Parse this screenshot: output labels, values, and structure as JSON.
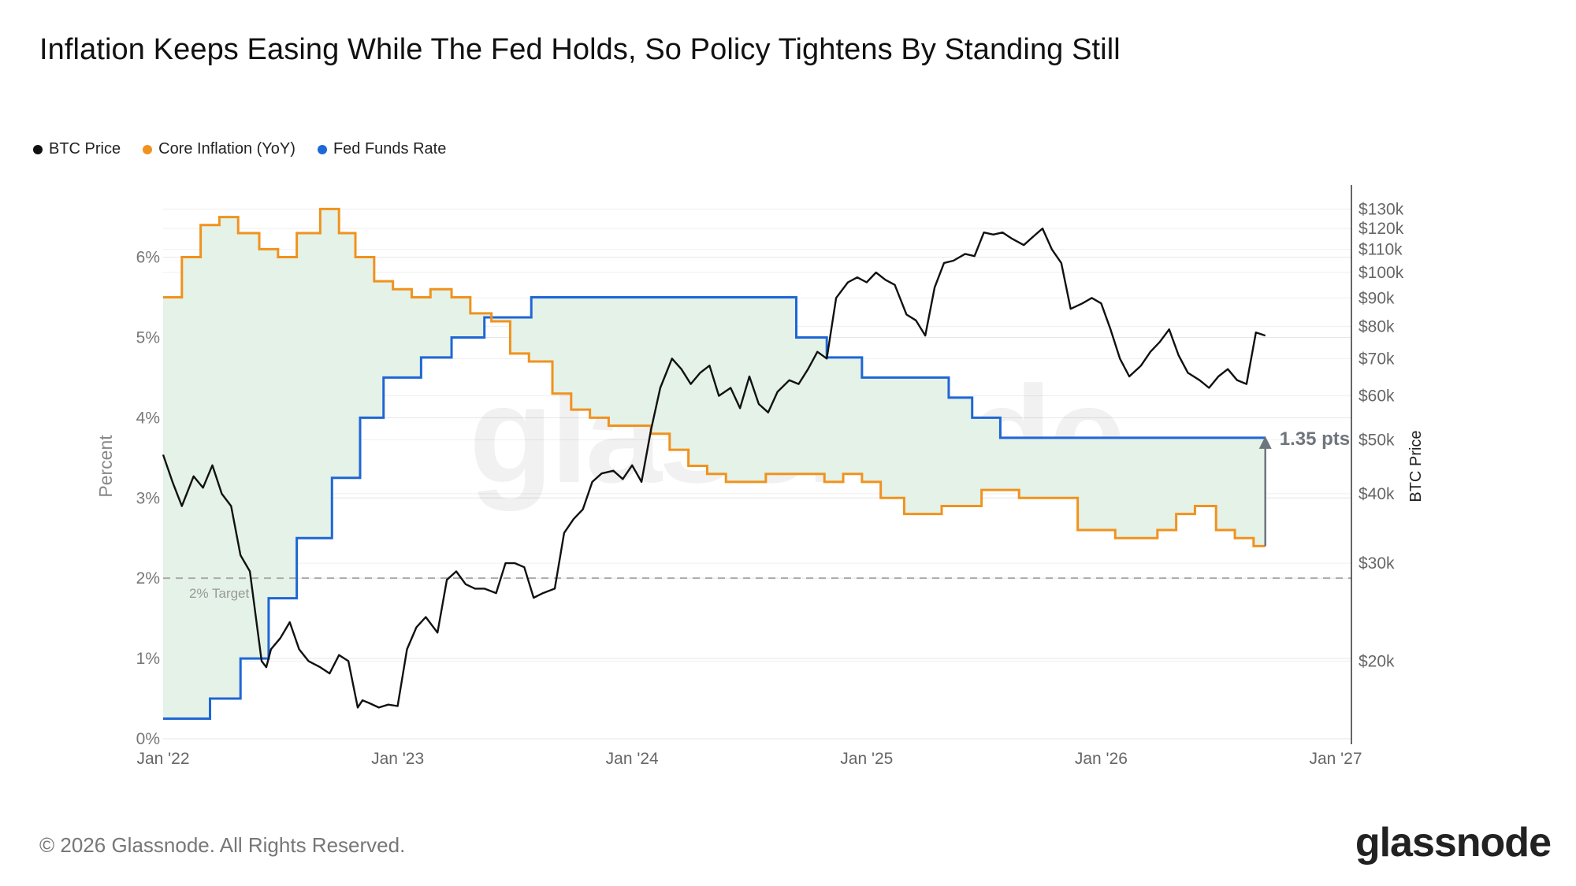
{
  "title": "Inflation Keeps Easing While The Fed Holds, So Policy Tightens By Standing Still",
  "footer": {
    "copyright": "© 2026 Glassnode. All Rights Reserved.",
    "brand": "glassnode",
    "watermark": "glassnode"
  },
  "colors": {
    "btc": "#111111",
    "inflation": "#f0921e",
    "fed": "#1f66d6",
    "fill": "#e3f1e6",
    "grid": "#e6e6e6",
    "target": "#aaaaaa",
    "arrow": "#6f757d"
  },
  "chart_data": {
    "type": "line",
    "legend": [
      {
        "name": "BTC Price",
        "color": "#111111"
      },
      {
        "name": "Core Inflation (YoY)",
        "color": "#f0921e"
      },
      {
        "name": "Fed Funds Rate",
        "color": "#1f66d6"
      }
    ],
    "legend_position": "top-left",
    "x_ticks": [
      "Jan '22",
      "Jan '23",
      "Jan '24",
      "Jan '25",
      "Jan '26",
      "Jan '27"
    ],
    "x_range": [
      2022.0,
      2027.0
    ],
    "ylabel_left": "Percent",
    "ylabel_right": "BTC Price",
    "y_left_ticks": [
      "0%",
      "1%",
      "2%",
      "3%",
      "4%",
      "5%",
      "6%"
    ],
    "y_left_range": [
      0,
      6.8
    ],
    "y_right_scale": "log",
    "y_right_range": [
      14500,
      139000
    ],
    "y_right_ticks": [
      {
        "label": "$20k",
        "value": 20000
      },
      {
        "label": "$30k",
        "value": 30000
      },
      {
        "label": "$40k",
        "value": 40000
      },
      {
        "label": "$50k",
        "value": 50000
      },
      {
        "label": "$60k",
        "value": 60000
      },
      {
        "label": "$70k",
        "value": 70000
      },
      {
        "label": "$80k",
        "value": 80000
      },
      {
        "label": "$90k",
        "value": 90000
      },
      {
        "label": "$100k",
        "value": 100000
      },
      {
        "label": "$110k",
        "value": 110000
      },
      {
        "label": "$120k",
        "value": 120000
      },
      {
        "label": "$130k",
        "value": 130000
      }
    ],
    "grid": true,
    "target_line": {
      "value": 2.0,
      "label": "2% Target"
    },
    "annotation": {
      "label": "1.35 pts",
      "x": 2026.7,
      "from": 2.4,
      "to": 3.75
    },
    "series": [
      {
        "name": "Fed Funds Rate",
        "step": true,
        "x": [
          2022.0,
          2022.2,
          2022.33,
          2022.45,
          2022.57,
          2022.72,
          2022.84,
          2022.94,
          2023.1,
          2023.23,
          2023.37,
          2023.5,
          2023.57,
          2024.7,
          2024.83,
          2024.98,
          2025.35,
          2025.45,
          2025.57,
          2025.7,
          2026.7
        ],
        "values": [
          0.25,
          0.5,
          1.0,
          1.75,
          2.5,
          3.25,
          4.0,
          4.5,
          4.75,
          5.0,
          5.25,
          5.25,
          5.5,
          5.0,
          4.75,
          4.5,
          4.25,
          4.0,
          3.75,
          3.75,
          3.75
        ]
      },
      {
        "name": "Core Inflation (YoY)",
        "step": true,
        "x": [
          2022.0,
          2022.08,
          2022.16,
          2022.24,
          2022.32,
          2022.41,
          2022.49,
          2022.57,
          2022.67,
          2022.75,
          2022.82,
          2022.9,
          2022.98,
          2023.06,
          2023.14,
          2023.23,
          2023.31,
          2023.4,
          2023.48,
          2023.56,
          2023.66,
          2023.74,
          2023.82,
          2023.9,
          2024.0,
          2024.08,
          2024.16,
          2024.24,
          2024.32,
          2024.4,
          2024.49,
          2024.57,
          2024.65,
          2024.74,
          2024.82,
          2024.9,
          2024.98,
          2025.06,
          2025.16,
          2025.24,
          2025.32,
          2025.4,
          2025.49,
          2025.57,
          2025.65,
          2025.74,
          2025.82,
          2025.9,
          2025.98,
          2026.06,
          2026.16,
          2026.24,
          2026.32,
          2026.4,
          2026.49,
          2026.57,
          2026.65,
          2026.7
        ],
        "values": [
          5.5,
          6.0,
          6.4,
          6.5,
          6.3,
          6.1,
          6.0,
          6.3,
          6.6,
          6.3,
          6.0,
          5.7,
          5.6,
          5.5,
          5.6,
          5.5,
          5.3,
          5.2,
          4.8,
          4.7,
          4.3,
          4.1,
          4.0,
          3.9,
          3.9,
          3.8,
          3.6,
          3.4,
          3.3,
          3.2,
          3.2,
          3.3,
          3.3,
          3.3,
          3.2,
          3.3,
          3.2,
          3.0,
          2.8,
          2.8,
          2.9,
          2.9,
          3.1,
          3.1,
          3.0,
          3.0,
          3.0,
          2.6,
          2.6,
          2.5,
          2.5,
          2.6,
          2.8,
          2.9,
          2.6,
          2.5,
          2.4,
          2.4
        ]
      },
      {
        "name": "BTC Price",
        "axis": "right",
        "x": [
          2022.0,
          2022.04,
          2022.08,
          2022.13,
          2022.17,
          2022.21,
          2022.25,
          2022.29,
          2022.33,
          2022.37,
          2022.42,
          2022.44,
          2022.46,
          2022.5,
          2022.54,
          2022.58,
          2022.62,
          2022.67,
          2022.71,
          2022.75,
          2022.79,
          2022.83,
          2022.85,
          2022.88,
          2022.92,
          2022.96,
          2023.0,
          2023.04,
          2023.08,
          2023.12,
          2023.17,
          2023.21,
          2023.25,
          2023.29,
          2023.33,
          2023.37,
          2023.42,
          2023.46,
          2023.5,
          2023.54,
          2023.58,
          2023.62,
          2023.67,
          2023.71,
          2023.75,
          2023.79,
          2023.83,
          2023.87,
          2023.92,
          2023.96,
          2024.0,
          2024.04,
          2024.08,
          2024.12,
          2024.17,
          2024.21,
          2024.25,
          2024.29,
          2024.33,
          2024.37,
          2024.42,
          2024.46,
          2024.5,
          2024.54,
          2024.58,
          2024.62,
          2024.67,
          2024.71,
          2024.75,
          2024.79,
          2024.83,
          2024.87,
          2024.92,
          2024.96,
          2025.0,
          2025.04,
          2025.08,
          2025.12,
          2025.17,
          2025.21,
          2025.25,
          2025.29,
          2025.33,
          2025.37,
          2025.42,
          2025.46,
          2025.5,
          2025.54,
          2025.58,
          2025.62,
          2025.67,
          2025.71,
          2025.75,
          2025.79,
          2025.83,
          2025.87,
          2025.92,
          2025.96,
          2026.0,
          2026.04,
          2026.08,
          2026.12,
          2026.17,
          2026.21,
          2026.25,
          2026.29,
          2026.33,
          2026.37,
          2026.42,
          2026.46,
          2026.5,
          2026.54,
          2026.58,
          2026.62,
          2026.66,
          2026.7
        ],
        "values": [
          47000,
          42000,
          38000,
          43000,
          41000,
          45000,
          40000,
          38000,
          31000,
          29000,
          20000,
          19500,
          21000,
          22000,
          23500,
          21000,
          20000,
          19500,
          19000,
          20500,
          20000,
          16500,
          17000,
          16800,
          16500,
          16700,
          16600,
          21000,
          23000,
          24000,
          22500,
          28000,
          29000,
          27500,
          27000,
          27000,
          26500,
          30000,
          30000,
          29500,
          26000,
          26500,
          27000,
          34000,
          36000,
          37500,
          42000,
          43500,
          44000,
          42500,
          45000,
          42000,
          52000,
          62000,
          70000,
          67000,
          63000,
          66000,
          68000,
          60000,
          62000,
          57000,
          65000,
          58000,
          56000,
          61000,
          64000,
          63000,
          67000,
          72000,
          70000,
          90000,
          96000,
          98000,
          96000,
          100000,
          97000,
          95000,
          84000,
          82000,
          77000,
          94000,
          104000,
          105000,
          108000,
          107000,
          118000,
          117000,
          118000,
          115000,
          112000,
          116000,
          120000,
          110000,
          104000,
          86000,
          88000,
          90000,
          88000,
          79000,
          70000,
          65000,
          68000,
          72000,
          75000,
          79000,
          71000,
          66000,
          64000,
          62000,
          65000,
          67000,
          64000,
          63000,
          78000,
          77000
        ]
      }
    ]
  }
}
